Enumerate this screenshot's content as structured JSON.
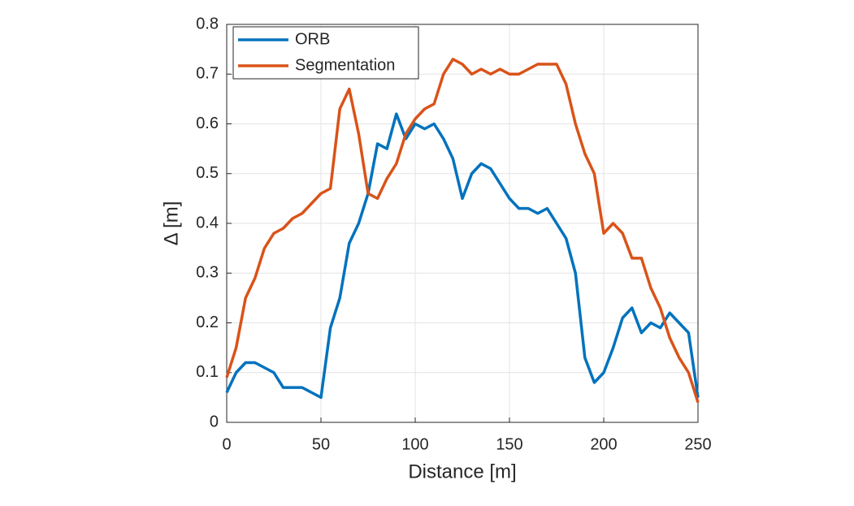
{
  "chart_data": {
    "type": "line",
    "xlabel": "Distance [m]",
    "ylabel": "Δ [m]",
    "x": [
      0,
      5,
      10,
      15,
      20,
      25,
      30,
      35,
      40,
      45,
      50,
      55,
      60,
      65,
      70,
      75,
      80,
      85,
      90,
      95,
      100,
      105,
      110,
      115,
      120,
      125,
      130,
      135,
      140,
      145,
      150,
      155,
      160,
      165,
      170,
      175,
      180,
      185,
      190,
      195,
      200,
      205,
      210,
      215,
      220,
      225,
      230,
      235,
      240,
      245,
      250
    ],
    "series": [
      {
        "name": "ORB",
        "color": "#0072bd",
        "values": [
          0.06,
          0.1,
          0.12,
          0.12,
          0.11,
          0.1,
          0.07,
          0.07,
          0.07,
          0.06,
          0.05,
          0.19,
          0.25,
          0.36,
          0.4,
          0.46,
          0.56,
          0.55,
          0.62,
          0.57,
          0.6,
          0.59,
          0.6,
          0.57,
          0.53,
          0.45,
          0.5,
          0.52,
          0.51,
          0.48,
          0.45,
          0.43,
          0.43,
          0.42,
          0.43,
          0.4,
          0.37,
          0.3,
          0.13,
          0.08,
          0.1,
          0.15,
          0.21,
          0.23,
          0.18,
          0.2,
          0.19,
          0.22,
          0.2,
          0.18,
          0.05
        ]
      },
      {
        "name": "Segmentation",
        "color": "#d95319",
        "values": [
          0.09,
          0.15,
          0.25,
          0.29,
          0.35,
          0.38,
          0.39,
          0.41,
          0.42,
          0.44,
          0.46,
          0.47,
          0.63,
          0.67,
          0.58,
          0.46,
          0.45,
          0.49,
          0.52,
          0.58,
          0.61,
          0.63,
          0.64,
          0.7,
          0.73,
          0.72,
          0.7,
          0.71,
          0.7,
          0.71,
          0.7,
          0.7,
          0.71,
          0.72,
          0.72,
          0.72,
          0.68,
          0.6,
          0.54,
          0.5,
          0.38,
          0.4,
          0.38,
          0.33,
          0.33,
          0.27,
          0.23,
          0.17,
          0.13,
          0.1,
          0.04
        ]
      }
    ],
    "xlim": [
      0,
      250
    ],
    "xticks": [
      0,
      50,
      100,
      150,
      200,
      250
    ],
    "ylim": [
      0,
      0.8
    ],
    "yticks": [
      0,
      0.1,
      0.2,
      0.3,
      0.4,
      0.5,
      0.6,
      0.7,
      0.8
    ],
    "grid": true,
    "legend": "upper-left"
  }
}
